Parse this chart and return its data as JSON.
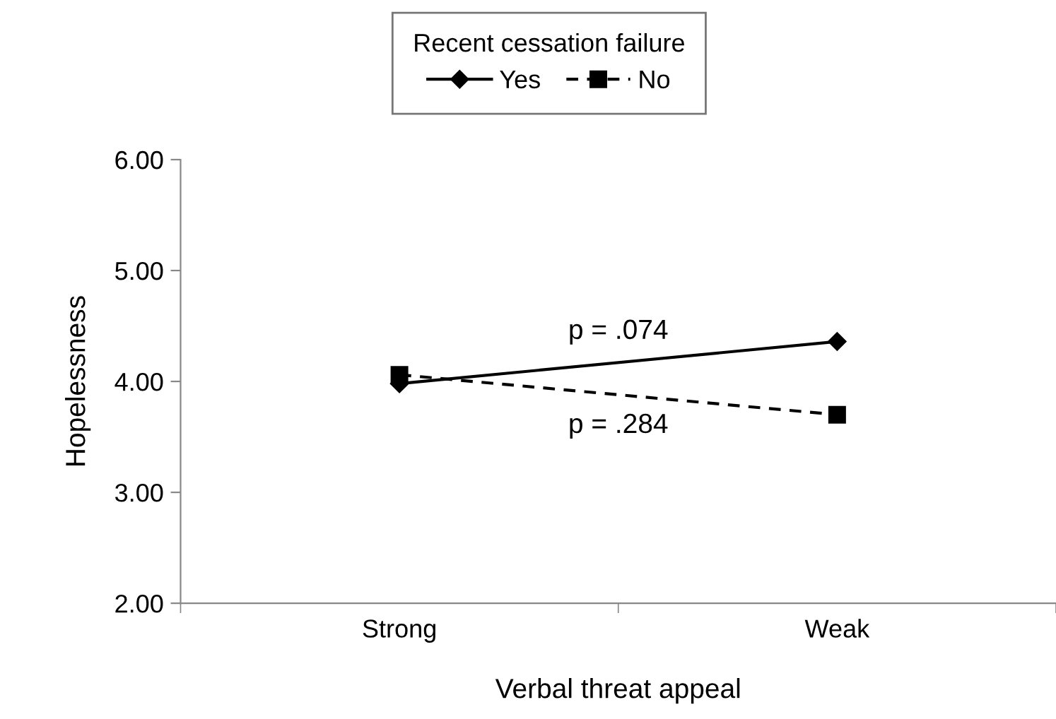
{
  "chart_data": {
    "type": "line",
    "xlabel": "Verbal threat appeal",
    "ylabel": "Hopelessness",
    "legend_title": "Recent cessation failure",
    "categories": [
      "Strong",
      "Weak"
    ],
    "series": [
      {
        "name": "Yes",
        "color": "#000000",
        "values": [
          3.98,
          4.36
        ],
        "marker": "diamond",
        "line_style": "solid"
      },
      {
        "name": "No",
        "color": "#000000",
        "values": [
          4.06,
          3.7
        ],
        "marker": "square",
        "line_style": "dashed"
      }
    ],
    "ylim": [
      2,
      6
    ],
    "yticks": [
      {
        "value": 2,
        "label": "2.00"
      },
      {
        "value": 3,
        "label": "3.00"
      },
      {
        "value": 4,
        "label": "4.00"
      },
      {
        "value": 5,
        "label": "5.00"
      },
      {
        "value": 6,
        "label": "6.00"
      }
    ],
    "annotations": [
      "p = .074",
      "p = .284"
    ],
    "legend": "top",
    "grid": false
  }
}
